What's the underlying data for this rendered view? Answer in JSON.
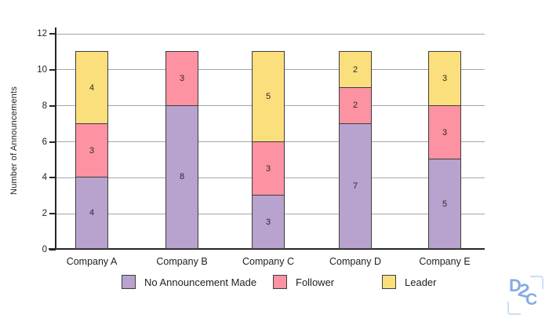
{
  "chart_data": {
    "type": "bar",
    "stacked": true,
    "title": "",
    "categories": [
      "Company A",
      "Company B",
      "Company C",
      "Company D",
      "Company E"
    ],
    "series": [
      {
        "name": "No Announcement Made",
        "color": "#b7a3cd",
        "values": [
          4,
          8,
          3,
          7,
          5
        ]
      },
      {
        "name": "Follower",
        "color": "#fc92a2",
        "values": [
          3,
          3,
          3,
          2,
          3
        ]
      },
      {
        "name": "Leader",
        "color": "#fbdf7d",
        "values": [
          4,
          0,
          5,
          2,
          3
        ]
      }
    ],
    "xlabel": "",
    "ylabel": "Number of Announcements",
    "ylim": [
      0,
      12
    ],
    "ytick_step": 2,
    "ytick_labels": [
      "0",
      "2",
      "4",
      "6",
      "8",
      "10",
      "12"
    ],
    "grid": "horizontal",
    "legend_position": "bottom",
    "bar_totals": [
      11,
      11,
      11,
      11,
      11
    ]
  },
  "colors": {
    "no_announcement": "#b7a3cd",
    "follower": "#fc92a2",
    "leader": "#fbdf7d",
    "segment_border": "#3d3d3d",
    "gridline": "#a6a6a6",
    "axis": "#262626",
    "logo_blue": "#85abe2",
    "logo_bracket": "#cddef6"
  },
  "logo": {
    "letter_d": "D",
    "letter_2": "2",
    "letter_c": "C"
  }
}
